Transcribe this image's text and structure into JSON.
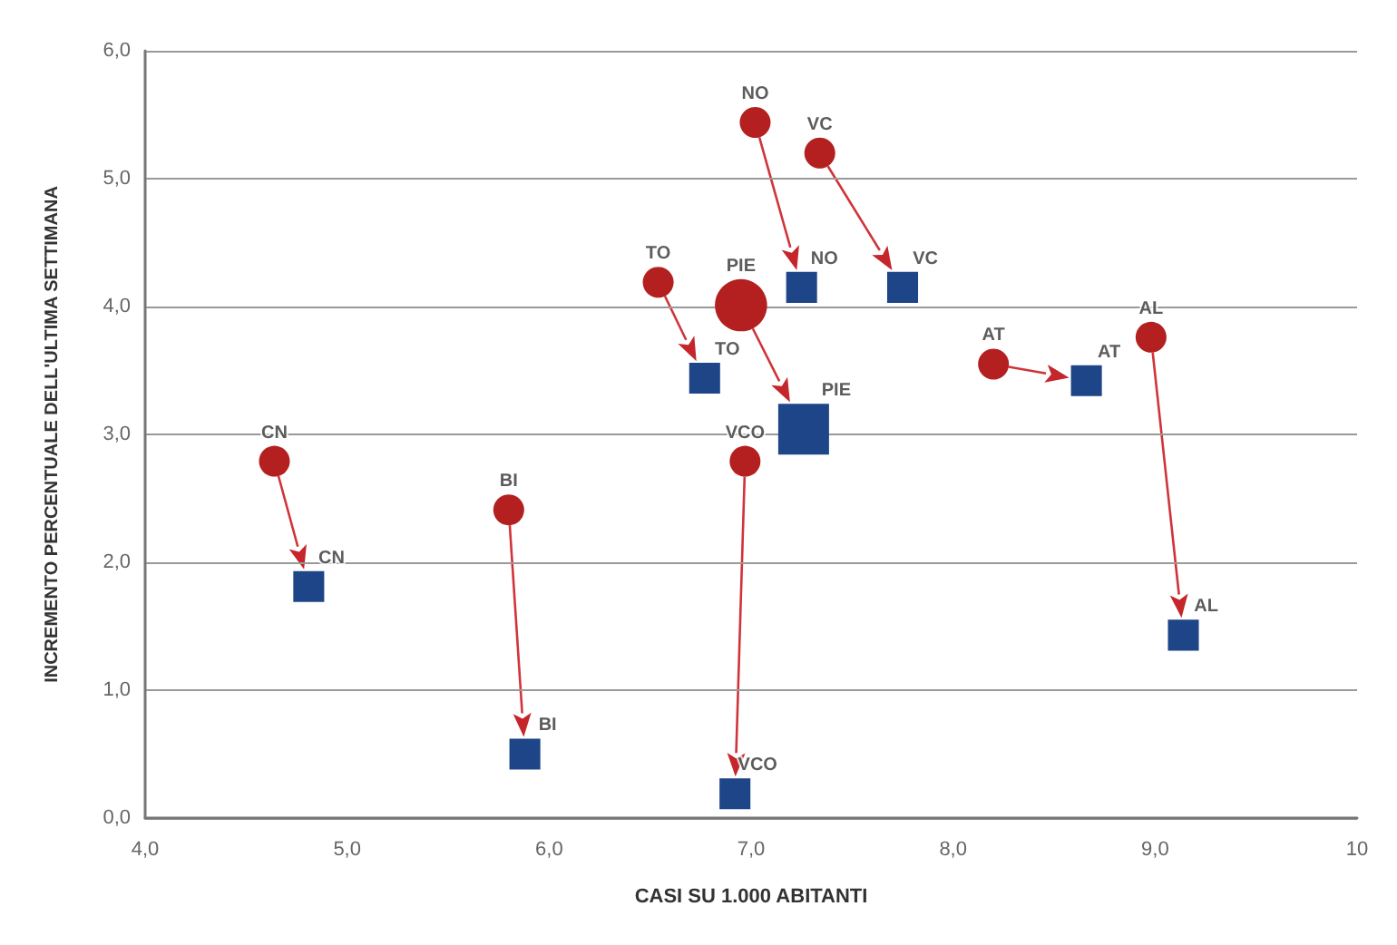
{
  "chart_data": {
    "type": "bubble",
    "xlabel": "CASI SU 1.000 ABITANTI",
    "ylabel": "INCREMENTO PERCENTUALE DELL'ULTIMA SETTIMANA",
    "series": [
      {
        "color": "#b3201f",
        "marker": "circle",
        "x": [
          4.64,
          5.8,
          6.54,
          6.95,
          7.02,
          7.34,
          6.97,
          8.2,
          8.98
        ],
        "values": [
          2.79,
          2.41,
          4.19,
          4.01,
          5.44,
          5.2,
          2.79,
          3.55,
          3.76
        ],
        "sizes": [
          0.29,
          0.29,
          0.29,
          0.83,
          0.29,
          0.29,
          0.29,
          0.29,
          0.29
        ]
      },
      {
        "color": "#1d4587",
        "marker": "square",
        "x": [
          4.81,
          5.88,
          6.77,
          7.26,
          7.25,
          7.75,
          6.92,
          8.66,
          9.14
        ],
        "values": [
          1.81,
          0.5,
          3.44,
          3.04,
          4.15,
          4.15,
          0.19,
          3.42,
          1.43
        ],
        "sizes": [
          0.37,
          0.37,
          0.37,
          1,
          0.37,
          0.37,
          0.37,
          0.37,
          0.37
        ]
      }
    ],
    "annotations": [
      {
        "text": "CN",
        "x": 4.64,
        "y": 2.79
      },
      {
        "text": "BI",
        "x": 5.8,
        "y": 2.41
      },
      {
        "text": "TO",
        "x": 6.54,
        "y": 4.19
      },
      {
        "text": "PIE",
        "x": 6.95,
        "y": 4.01
      },
      {
        "text": "NO",
        "x": 7.02,
        "y": 5.44
      },
      {
        "text": "VC",
        "x": 7.34,
        "y": 5.2
      },
      {
        "text": "VCO",
        "x": 6.97,
        "y": 2.79
      },
      {
        "text": "AT",
        "x": 8.2,
        "y": 3.55
      },
      {
        "text": "AL",
        "x": 8.98,
        "y": 3.76
      },
      {
        "text": "CN",
        "x": 4.81,
        "y": 1.81
      },
      {
        "text": "BI",
        "x": 5.88,
        "y": 0.5
      },
      {
        "text": "TO",
        "x": 6.77,
        "y": 3.44
      },
      {
        "text": "PIE",
        "x": 7.26,
        "y": 3.04
      },
      {
        "text": "NO",
        "x": 7.25,
        "y": 4.15
      },
      {
        "text": "VC",
        "x": 7.75,
        "y": 4.15
      },
      {
        "text": "VCO",
        "x": 6.92,
        "y": 0.19
      },
      {
        "text": "AT",
        "x": 8.66,
        "y": 3.42
      },
      {
        "text": "AL",
        "x": 9.14,
        "y": 1.43
      }
    ],
    "xlim": [
      4,
      10
    ],
    "ylim": [
      0,
      6
    ],
    "xticks": [
      {
        "value": 4,
        "label": "4,0"
      },
      {
        "value": 5,
        "label": "5,0"
      },
      {
        "value": 6,
        "label": "6,0"
      },
      {
        "value": 7,
        "label": "7,0"
      },
      {
        "value": 8,
        "label": "8,0"
      },
      {
        "value": 9,
        "label": "9,0"
      },
      {
        "value": 10,
        "label": "10"
      }
    ],
    "yticks": [
      {
        "value": 0,
        "label": "0,0"
      },
      {
        "value": 1,
        "label": "1,0"
      },
      {
        "value": 2,
        "label": "2,0"
      },
      {
        "value": 3,
        "label": "3,0"
      },
      {
        "value": 4,
        "label": "4,0"
      },
      {
        "value": 5,
        "label": "5,0"
      },
      {
        "value": 6,
        "label": "6,0"
      }
    ],
    "grid": "y"
  }
}
